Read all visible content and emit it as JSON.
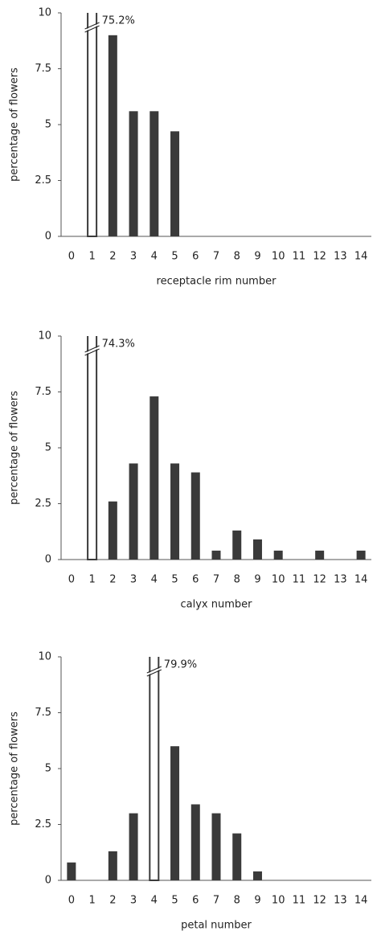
{
  "chart_data": [
    {
      "type": "bar",
      "x_label": "receptacle rim number",
      "y_label": "percentage of flowers",
      "categories": [
        "0",
        "1",
        "2",
        "3",
        "4",
        "5",
        "6",
        "7",
        "8",
        "9",
        "10",
        "11",
        "12",
        "13",
        "14"
      ],
      "values": [
        0,
        75.2,
        9.0,
        5.6,
        5.6,
        4.7,
        0,
        0,
        0,
        0,
        0,
        0,
        0,
        0,
        0
      ],
      "value_labels": [
        null,
        "75.2%",
        null,
        null,
        null,
        null,
        null,
        null,
        null,
        null,
        null,
        null,
        null,
        null,
        null
      ],
      "color": "#3a3a3a",
      "ylim": [
        0,
        10
      ],
      "yticks": [
        0,
        2.5,
        5,
        7.5,
        10
      ],
      "grid": false
    },
    {
      "type": "bar",
      "x_label": "calyx number",
      "y_label": "percentage of flowers",
      "categories": [
        "0",
        "1",
        "2",
        "3",
        "4",
        "5",
        "6",
        "7",
        "8",
        "9",
        "10",
        "11",
        "12",
        "13",
        "14"
      ],
      "values": [
        0,
        74.3,
        2.6,
        4.3,
        7.3,
        4.3,
        3.9,
        0.4,
        1.3,
        0.9,
        0.4,
        0,
        0.4,
        0,
        0.4
      ],
      "value_labels": [
        null,
        "74.3%",
        null,
        null,
        null,
        null,
        null,
        null,
        null,
        null,
        null,
        null,
        null,
        null,
        null
      ],
      "color": "#3a3a3a",
      "ylim": [
        0,
        10
      ],
      "yticks": [
        0,
        2.5,
        5,
        7.5,
        10
      ],
      "grid": false
    },
    {
      "type": "bar",
      "x_label": "petal number",
      "y_label": "percentage of flowers",
      "categories": [
        "0",
        "1",
        "2",
        "3",
        "4",
        "5",
        "6",
        "7",
        "8",
        "9",
        "10",
        "11",
        "12",
        "13",
        "14"
      ],
      "values": [
        0.8,
        0,
        1.3,
        3.0,
        79.9,
        6.0,
        3.4,
        3.0,
        2.1,
        0.4,
        0,
        0,
        0,
        0,
        0
      ],
      "value_labels": [
        null,
        null,
        null,
        null,
        "79.9%",
        null,
        null,
        null,
        null,
        null,
        null,
        null,
        null,
        null,
        null
      ],
      "color": "#3a3a3a",
      "ylim": [
        0,
        10
      ],
      "yticks": [
        0,
        2.5,
        5,
        7.5,
        10
      ],
      "grid": false
    }
  ]
}
